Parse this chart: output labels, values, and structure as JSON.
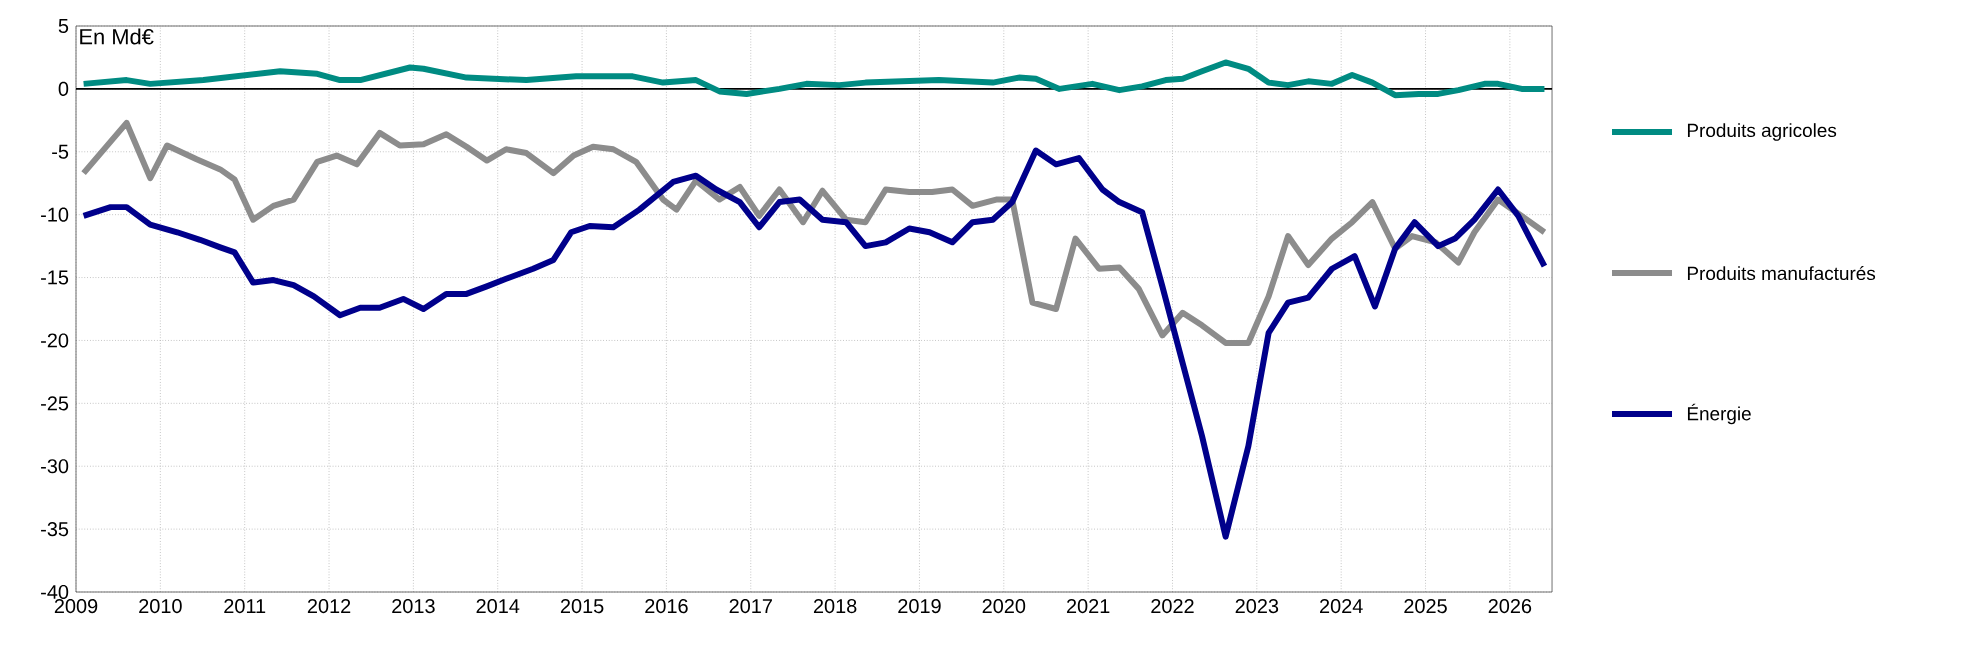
{
  "chart_data": {
    "type": "line",
    "ylabel": "En Md€",
    "xlim": [
      2009,
      2026.5
    ],
    "xticks": [
      2009,
      2010,
      2011,
      2012,
      2013,
      2014,
      2015,
      2016,
      2017,
      2018,
      2019,
      2020,
      2021,
      2022,
      2023,
      2024,
      2025,
      2026
    ],
    "ylim": [
      -40,
      5
    ],
    "yticks": [
      5,
      0,
      -5,
      -10,
      -15,
      -20,
      -25,
      -30,
      -35,
      -40
    ],
    "grid": true,
    "legend": "right",
    "marker": "none",
    "line_style": "solid",
    "ref_lines": [
      {
        "axis": "y",
        "value": 0,
        "color": "#000000"
      }
    ],
    "series": [
      {
        "name": "Produits agricoles",
        "color": "#008b82",
        "x": [
          2009.09,
          2009.6,
          2009.88,
          2010.51,
          2011.42,
          2011.86,
          2012.13,
          2012.37,
          2012.96,
          2013.12,
          2013.63,
          2014.34,
          2014.93,
          2015.6,
          2015.96,
          2016.35,
          2016.63,
          2016.95,
          2017.34,
          2017.66,
          2018.05,
          2018.36,
          2019.23,
          2019.87,
          2020.18,
          2020.38,
          2020.66,
          2021.05,
          2021.37,
          2021.64,
          2021.92,
          2022.12,
          2022.35,
          2022.63,
          2022.9,
          2023.14,
          2023.37,
          2023.61,
          2023.89,
          2024.13,
          2024.37,
          2024.64,
          2024.92,
          2025.15,
          2025.39,
          2025.7,
          2025.86,
          2026.14,
          2026.41
        ],
        "values": [
          0.4,
          0.7,
          0.4,
          0.7,
          1.4,
          1.2,
          0.7,
          0.7,
          1.7,
          1.6,
          0.9,
          0.7,
          1.0,
          1.0,
          0.5,
          0.7,
          -0.2,
          -0.4,
          0.0,
          0.4,
          0.3,
          0.5,
          0.7,
          0.5,
          0.9,
          0.8,
          0.0,
          0.4,
          -0.1,
          0.2,
          0.7,
          0.8,
          1.4,
          2.1,
          1.6,
          0.5,
          0.3,
          0.6,
          0.4,
          1.1,
          0.5,
          -0.5,
          -0.4,
          -0.4,
          -0.1,
          0.4,
          0.4,
          0.0,
          0.0
        ]
      },
      {
        "name": "Produits manufacturés",
        "color": "#8c8c8c",
        "x": [
          2009.09,
          2009.6,
          2009.88,
          2010.08,
          2010.43,
          2010.71,
          2010.88,
          2011.1,
          2011.34,
          2011.58,
          2011.86,
          2012.09,
          2012.33,
          2012.6,
          2012.84,
          2013.12,
          2013.39,
          2013.63,
          2013.87,
          2014.1,
          2014.34,
          2014.66,
          2014.9,
          2015.13,
          2015.37,
          2015.64,
          2015.96,
          2016.12,
          2016.35,
          2016.63,
          2016.87,
          2017.1,
          2017.34,
          2017.62,
          2017.85,
          2018.13,
          2018.36,
          2018.6,
          2018.88,
          2019.15,
          2019.39,
          2019.63,
          2019.91,
          2020.1,
          2020.34,
          2020.62,
          2020.85,
          2021.13,
          2021.37,
          2021.6,
          2021.88,
          2022.12,
          2022.35,
          2022.63,
          2022.9,
          2023.14,
          2023.37,
          2023.61,
          2023.89,
          2024.13,
          2024.37,
          2024.64,
          2024.84,
          2025.12,
          2025.39,
          2025.58,
          2025.86,
          2026.14,
          2026.41
        ],
        "values": [
          -6.7,
          -2.7,
          -7.1,
          -4.5,
          -5.6,
          -6.4,
          -7.2,
          -10.4,
          -9.3,
          -8.8,
          -5.8,
          -5.3,
          -6.0,
          -3.5,
          -4.5,
          -4.4,
          -3.6,
          -4.6,
          -5.7,
          -4.8,
          -5.1,
          -6.7,
          -5.3,
          -4.6,
          -4.8,
          -5.8,
          -8.8,
          -9.6,
          -7.3,
          -8.8,
          -7.8,
          -10.1,
          -8.0,
          -10.6,
          -8.1,
          -10.4,
          -10.6,
          -8.0,
          -8.2,
          -8.2,
          -8.0,
          -9.3,
          -8.8,
          -8.8,
          -17.0,
          -17.5,
          -11.9,
          -14.3,
          -14.2,
          -15.9,
          -19.6,
          -17.8,
          -18.8,
          -20.2,
          -20.2,
          -16.5,
          -11.7,
          -14.0,
          -11.9,
          -10.6,
          -9.0,
          -12.7,
          -11.7,
          -12.2,
          -13.8,
          -11.4,
          -8.8,
          -10.1,
          -11.4
        ]
      },
      {
        "name": "Énergie",
        "color": "#00008b",
        "x": [
          2009.09,
          2009.41,
          2009.6,
          2009.88,
          2010.2,
          2010.47,
          2010.71,
          2010.88,
          2011.1,
          2011.34,
          2011.58,
          2011.82,
          2012.13,
          2012.37,
          2012.6,
          2012.88,
          2013.12,
          2013.39,
          2013.63,
          2013.87,
          2014.1,
          2014.42,
          2014.66,
          2014.87,
          2015.09,
          2015.37,
          2015.68,
          2016.08,
          2016.35,
          2016.59,
          2016.87,
          2017.1,
          2017.34,
          2017.58,
          2017.85,
          2018.13,
          2018.36,
          2018.6,
          2018.88,
          2019.12,
          2019.39,
          2019.63,
          2019.87,
          2020.1,
          2020.38,
          2020.62,
          2020.89,
          2021.17,
          2021.37,
          2021.64,
          2021.88,
          2022.12,
          2022.35,
          2022.63,
          2022.9,
          2023.14,
          2023.37,
          2023.61,
          2023.89,
          2024.16,
          2024.4,
          2024.64,
          2024.87,
          2025.15,
          2025.35,
          2025.58,
          2025.86,
          2026.1,
          2026.41
        ],
        "values": [
          -10.1,
          -9.4,
          -9.4,
          -10.8,
          -11.4,
          -12.0,
          -12.6,
          -13.0,
          -15.4,
          -15.2,
          -15.6,
          -16.5,
          -18.0,
          -17.4,
          -17.4,
          -16.7,
          -17.5,
          -16.3,
          -16.3,
          -15.7,
          -15.1,
          -14.3,
          -13.6,
          -11.4,
          -10.9,
          -11.0,
          -9.6,
          -7.4,
          -6.9,
          -8.0,
          -9.0,
          -11.0,
          -9.0,
          -8.8,
          -10.4,
          -10.6,
          -12.5,
          -12.2,
          -11.1,
          -11.4,
          -12.2,
          -10.6,
          -10.4,
          -9.0,
          -4.9,
          -6.0,
          -5.5,
          -8.0,
          -9.0,
          -9.8,
          -15.7,
          -21.8,
          -27.6,
          -35.6,
          -28.4,
          -19.4,
          -17.0,
          -16.6,
          -14.3,
          -13.3,
          -17.3,
          -12.7,
          -10.6,
          -12.5,
          -11.9,
          -10.4,
          -8.0,
          -10.1,
          -14.1
        ]
      }
    ]
  }
}
